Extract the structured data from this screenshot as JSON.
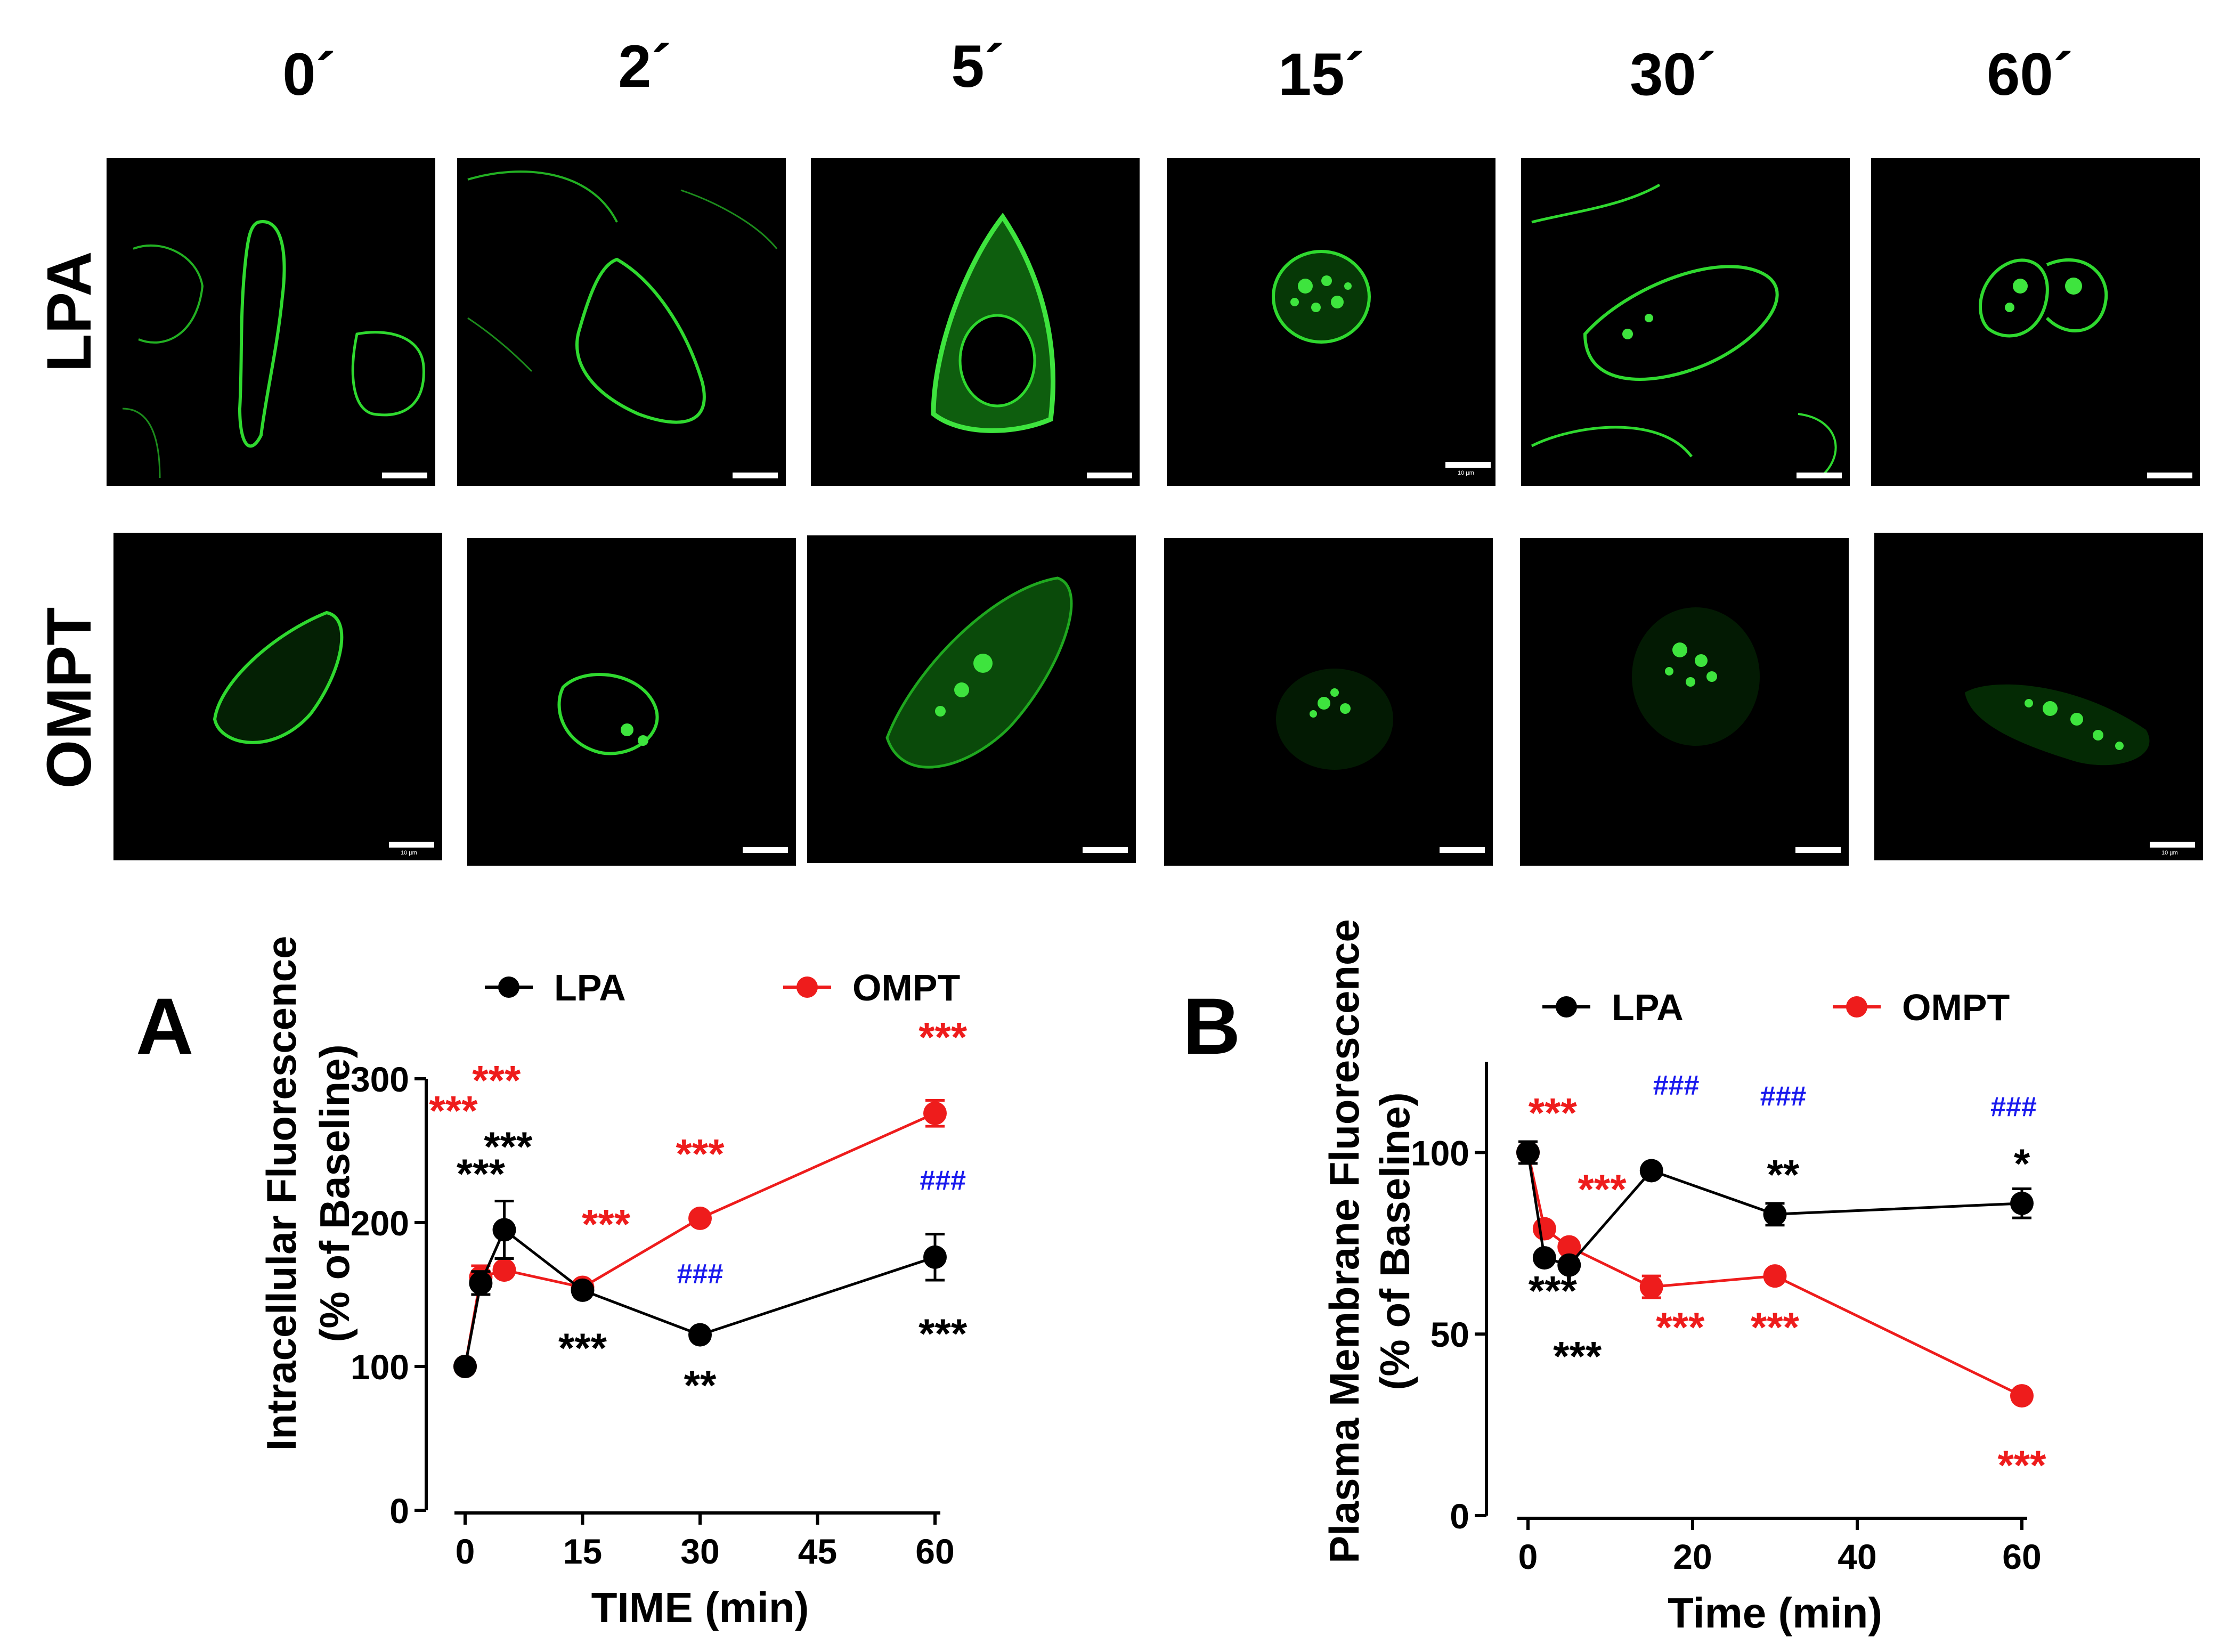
{
  "figure": {
    "time_labels": [
      "0´",
      "2´",
      "5´",
      "15´",
      "30´",
      "60´"
    ],
    "row_labels": [
      "LPA",
      "OMPT"
    ],
    "scalebar_text": "10 µm",
    "panel_letters": [
      "A",
      "B"
    ]
  },
  "chart_data": [
    {
      "type": "line",
      "panel": "A",
      "xlabel": "TIME (min)",
      "ylabel_line1": "Intracellular  Fluorescence",
      "ylabel_line2": "(% of Baseline)",
      "xlim": [
        0,
        60
      ],
      "ylim": [
        0,
        300
      ],
      "xticks": [
        0,
        15,
        30,
        45,
        60
      ],
      "yticks": [
        0,
        100,
        200,
        300
      ],
      "legend": "top",
      "series": [
        {
          "name": "LPA",
          "color": "#000000",
          "x": [
            0,
            2,
            5,
            15,
            30,
            60
          ],
          "y": [
            100,
            158,
            195,
            153,
            122,
            176
          ],
          "err": [
            0,
            8,
            20,
            0,
            0,
            16
          ]
        },
        {
          "name": "OMPT",
          "color": "#ee1c1c",
          "x": [
            0,
            2,
            5,
            15,
            30,
            60
          ],
          "y": [
            100,
            162,
            167,
            155,
            203,
            276
          ],
          "err": [
            0,
            8,
            0,
            0,
            0,
            9
          ]
        }
      ],
      "annotations": [
        {
          "text": "***",
          "color": "#ee1c1c",
          "x": -1.5,
          "y": 268
        },
        {
          "text": "***",
          "color": "#ee1c1c",
          "x": 4.0,
          "y": 289
        },
        {
          "text": "***",
          "color": "#000000",
          "x": 5.5,
          "y": 243
        },
        {
          "text": "***",
          "color": "#000000",
          "x": 2.0,
          "y": 224
        },
        {
          "text": "***",
          "color": "#ee1c1c",
          "x": 18.0,
          "y": 189
        },
        {
          "text": "***",
          "color": "#000000",
          "x": 15.0,
          "y": 103
        },
        {
          "text": "***",
          "color": "#ee1c1c",
          "x": 30.0,
          "y": 238
        },
        {
          "text": "###",
          "color": "#1a1aee",
          "x": 30.0,
          "y": 158
        },
        {
          "text": "**",
          "color": "#000000",
          "x": 30.0,
          "y": 77
        },
        {
          "text": "***",
          "color": "#ee1c1c",
          "x": 61.0,
          "y": 319
        },
        {
          "text": "###",
          "color": "#1a1aee",
          "x": 61.0,
          "y": 223
        },
        {
          "text": "***",
          "color": "#000000",
          "x": 61.0,
          "y": 113
        }
      ]
    },
    {
      "type": "line",
      "panel": "B",
      "xlabel": "Time (min)",
      "ylabel_line1": "Plasma Membrane Fluorescence",
      "ylabel_line2": "(% of Baseline)",
      "xlim": [
        0,
        60
      ],
      "ylim": [
        0,
        125
      ],
      "xticks": [
        0,
        20,
        40,
        60
      ],
      "yticks": [
        0,
        50,
        100
      ],
      "legend": "top",
      "series": [
        {
          "name": "LPA",
          "color": "#000000",
          "x": [
            0,
            2,
            5,
            15,
            30,
            60
          ],
          "y": [
            100,
            71,
            69,
            95,
            83,
            86
          ],
          "err": [
            3,
            0,
            0,
            0,
            3,
            4
          ]
        },
        {
          "name": "OMPT",
          "color": "#ee1c1c",
          "x": [
            0,
            2,
            5,
            15,
            30,
            60
          ],
          "y": [
            100,
            79,
            74,
            63,
            66,
            33
          ],
          "err": [
            0,
            0,
            0,
            3,
            0,
            0
          ]
        }
      ],
      "annotations": [
        {
          "text": "***",
          "color": "#ee1c1c",
          "x": 3.0,
          "y": 107
        },
        {
          "text": "***",
          "color": "#ee1c1c",
          "x": 9.0,
          "y": 86
        },
        {
          "text": "###",
          "color": "#1a1aee",
          "x": 18.0,
          "y": 116
        },
        {
          "text": "###",
          "color": "#1a1aee",
          "x": 31.0,
          "y": 113
        },
        {
          "text": "###",
          "color": "#1a1aee",
          "x": 59.0,
          "y": 110
        },
        {
          "text": "**",
          "color": "#000000",
          "x": 31.0,
          "y": 90
        },
        {
          "text": "*",
          "color": "#000000",
          "x": 60.0,
          "y": 93
        },
        {
          "text": "***",
          "color": "#000000",
          "x": 3.0,
          "y": 58
        },
        {
          "text": "***",
          "color": "#000000",
          "x": 6.0,
          "y": 40
        },
        {
          "text": "***",
          "color": "#ee1c1c",
          "x": 18.5,
          "y": 48
        },
        {
          "text": "***",
          "color": "#ee1c1c",
          "x": 30.0,
          "y": 48
        },
        {
          "text": "***",
          "color": "#ee1c1c",
          "x": 60.0,
          "y": 10
        }
      ]
    }
  ]
}
